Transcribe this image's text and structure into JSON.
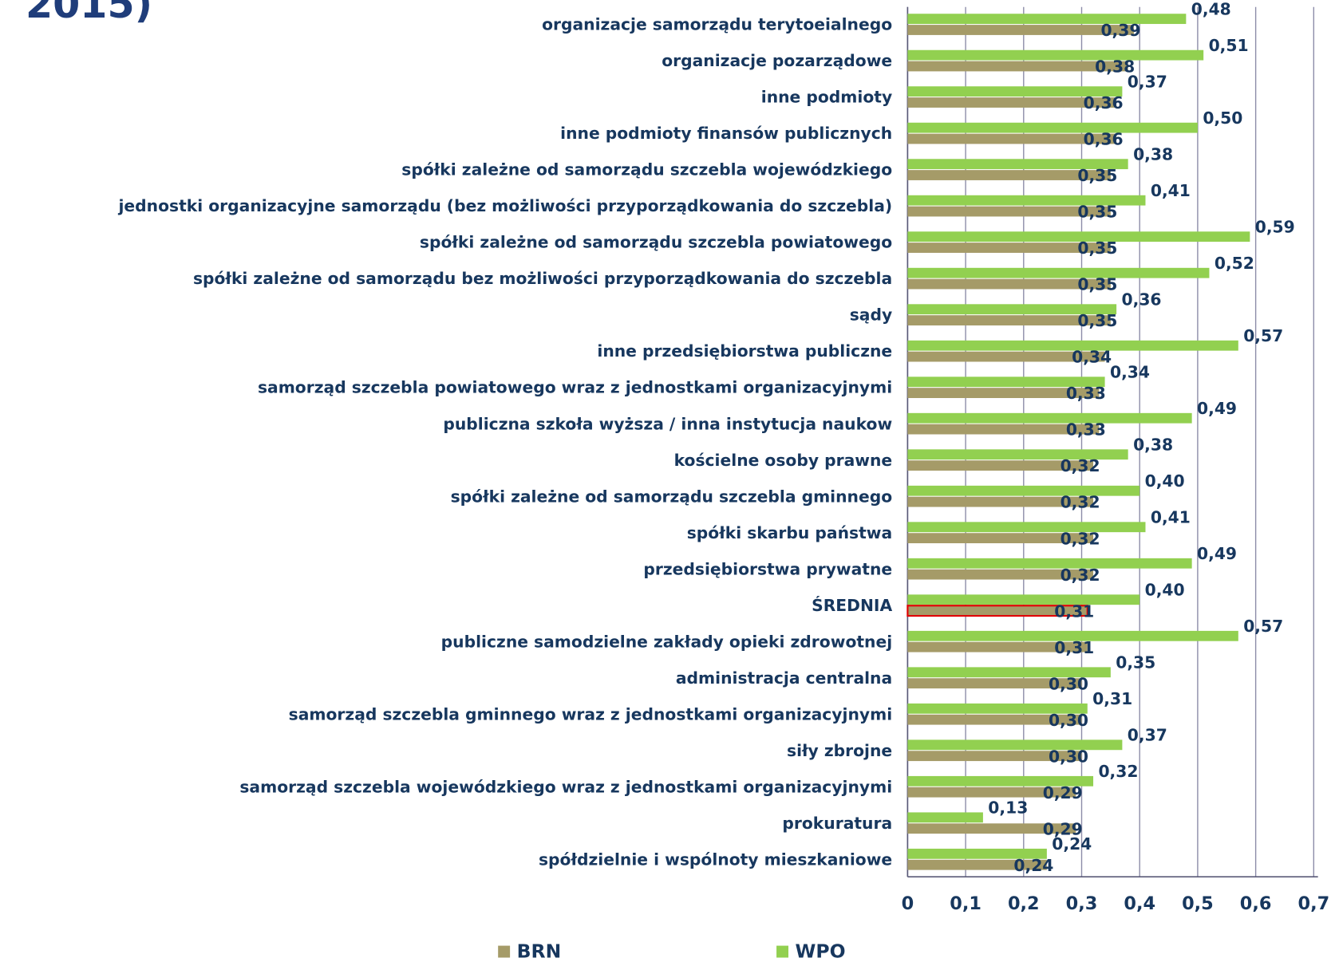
{
  "chart_data": {
    "type": "hbar",
    "title": "2015)",
    "categories": [
      "organizacje samorządu terytoeialnego",
      "organizacje pozarządowe",
      "inne podmioty ",
      "inne podmioty finansów publicznych",
      "spółki zależne od samorządu szczebla wojewódzkiego ",
      "jednostki organizacyjne samorządu (bez możliwości przyporządkowania do szczebla)",
      "spółki zależne od samorządu szczebla powiatowego ",
      "spółki zależne od samorządu bez możliwości przyporządkowania do szczebla",
      "sądy",
      "inne przedsiębiorstwa publiczne",
      "samorząd szczebla powiatowego wraz z jednostkami organizacyjnymi",
      "publiczna szkoła wyższa / inna instytucja naukow",
      "kościelne osoby prawne",
      "spółki zależne od samorządu szczebla gminnego",
      "spółki skarbu państwa",
      "przedsiębiorstwa prywatne",
      "ŚREDNIA",
      "publiczne samodzielne zakłady opieki zdrowotnej",
      "administracja centralna",
      "samorząd szczebla gminnego wraz z jednostkami organizacyjnymi",
      "siły zbrojne",
      "samorząd szczebla wojewódzkiego wraz z jednostkami organizacyjnymi",
      "prokuratura",
      "spółdzielnie i wspólnoty mieszkaniowe"
    ],
    "series": [
      {
        "name": "BRN",
        "color": "#a59b68",
        "values": [
          0.39,
          0.38,
          0.36,
          0.36,
          0.35,
          0.35,
          0.35,
          0.35,
          0.35,
          0.34,
          0.33,
          0.33,
          0.32,
          0.32,
          0.32,
          0.32,
          0.31,
          0.31,
          0.3,
          0.3,
          0.3,
          0.29,
          0.29,
          0.24
        ],
        "value_labels": [
          "0,39",
          "0,38",
          "0,36",
          "0,36",
          "0,35",
          "0,35",
          "0,35",
          "0,35",
          "0,35",
          "0,34",
          "0,33",
          "0,33",
          "0,32",
          "0,32",
          "0,32",
          "0,32",
          "0,31",
          "0,31",
          "0,30",
          "0,30",
          "0,30",
          "0,29",
          "0,29",
          "0,24"
        ]
      },
      {
        "name": "WPO",
        "color": "#92d050",
        "values": [
          0.48,
          0.51,
          0.37,
          0.5,
          0.38,
          0.41,
          0.59,
          0.52,
          0.36,
          0.57,
          0.34,
          0.49,
          0.38,
          0.4,
          0.41,
          0.49,
          0.4,
          0.57,
          0.35,
          0.31,
          0.37,
          0.32,
          0.13,
          0.24
        ],
        "value_labels": [
          "0,48",
          "0,51",
          "0,37",
          "0,50",
          "0,38",
          "0,41",
          "0,59",
          "0,52",
          "0,36",
          "0,57",
          "0,34",
          "0,49",
          "0,38",
          "0,40",
          "0,41",
          "0,49",
          "0,40",
          "0,57",
          "0,35",
          "0,31",
          "0,37",
          "0,32",
          "0,13",
          "0,24"
        ]
      }
    ],
    "highlight_index": 16,
    "highlight_outline": "#e00000",
    "xlim": [
      0,
      0.7
    ],
    "xticks": [
      0,
      {
        "value": 0.1,
        "label": "0,1"
      },
      {
        "value": 0.2,
        "label": "0,2"
      },
      {
        "value": 0.3,
        "label": "0,3"
      },
      {
        "value": 0.4,
        "label": "0,4"
      },
      {
        "value": 0.5,
        "label": "0,5"
      },
      {
        "value": 0.6,
        "label": "0,6"
      },
      {
        "value": 0.7,
        "label": "0,7"
      }
    ],
    "grid": true,
    "legend": "bottom"
  }
}
